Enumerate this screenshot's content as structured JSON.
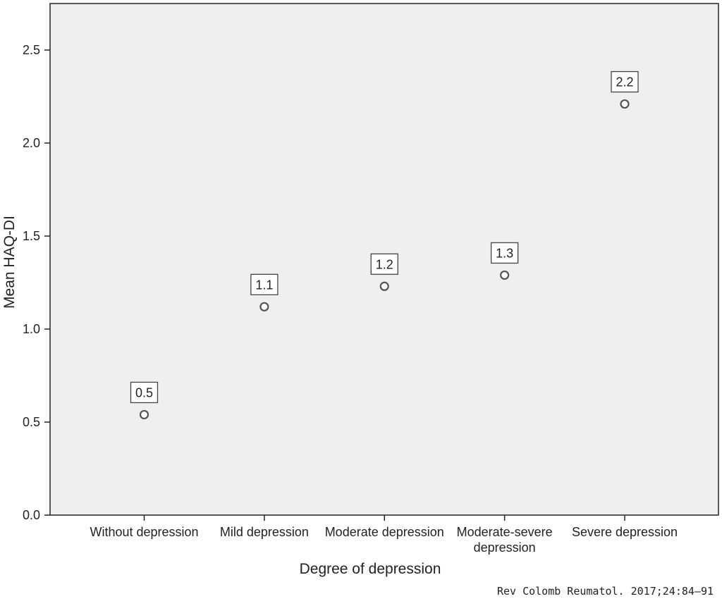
{
  "chart_data": {
    "type": "scatter",
    "xlabel": "Degree of depression",
    "ylabel": "Mean HAQ-DI",
    "categories": [
      [
        "Without depression"
      ],
      [
        "Mild depression"
      ],
      [
        "Moderate depression"
      ],
      [
        "Moderate-severe",
        "depression"
      ],
      [
        "Severe depression"
      ]
    ],
    "values": [
      0.54,
      1.12,
      1.23,
      1.29,
      2.21
    ],
    "data_labels": [
      "0.5",
      "1.1",
      "1.2",
      "1.3",
      "2.2"
    ],
    "ylim": [
      0,
      2.75
    ],
    "yticks": [
      0.0,
      0.5,
      1.0,
      1.5,
      2.0,
      2.5
    ],
    "ytick_labels": [
      "0.0",
      "0.5",
      "1.0",
      "1.5",
      "2.0",
      "2.5"
    ],
    "grid": false,
    "plot_background": "#efefef",
    "marker_color": "#555555"
  },
  "source_note": "Rev Colomb Reumatol. 2017;24:84–91"
}
